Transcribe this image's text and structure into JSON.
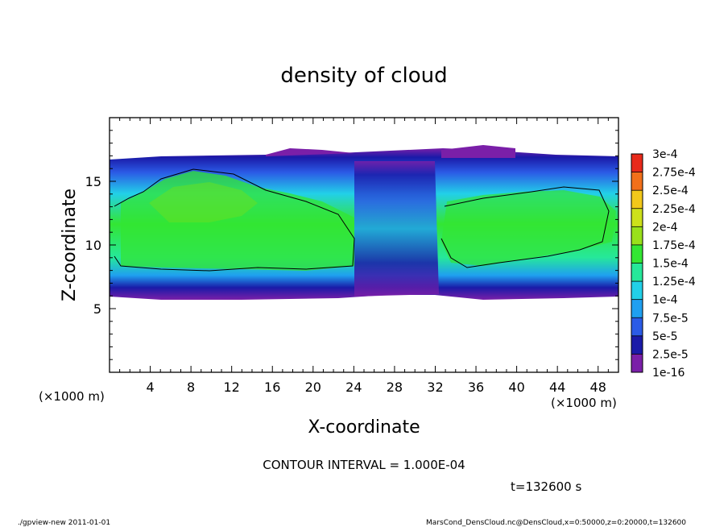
{
  "chart_data": {
    "type": "heatmap",
    "title": "density of cloud",
    "xlabel": "X-coordinate",
    "ylabel": "Z-coordinate",
    "x_unit_left": "(×1000 m)",
    "x_unit_right": "(×1000 m)",
    "xlim": [
      0,
      50
    ],
    "ylim": [
      0,
      20
    ],
    "xticks": [
      4,
      8,
      12,
      16,
      20,
      24,
      28,
      32,
      36,
      40,
      44,
      48
    ],
    "yticks": [
      5,
      10,
      15
    ],
    "colorbar": {
      "levels": [
        "1e-16",
        "2.5e-5",
        "5e-5",
        "7.5e-5",
        "1e-4",
        "1.25e-4",
        "1.5e-4",
        "1.75e-4",
        "2e-4",
        "2.25e-4",
        "2.5e-4",
        "2.75e-4",
        "3e-4"
      ],
      "colors": [
        "#7a1fa8",
        "#1a1aa8",
        "#2b5be6",
        "#1f9ff0",
        "#22d0e8",
        "#26e89a",
        "#33e633",
        "#99e01a",
        "#cde01a",
        "#f2c81a",
        "#f2701a",
        "#e82a1a",
        "#f07878"
      ]
    },
    "contour_interval": "CONTOUR INTERVAL = 1.000E-04",
    "time_label": "t=132600 s",
    "cloud_layer": {
      "z_bottom_range": [
        6,
        7.5
      ],
      "z_top_range": [
        16.5,
        17.5
      ],
      "max_density_region_x": [
        3,
        23
      ],
      "max_density_value": 0.00015
    }
  },
  "footer": {
    "left": "./gpview-new  2011-01-01",
    "right": "MarsCond_DensCloud.nc@DensCloud,x=0:50000,z=0:20000,t=132600"
  }
}
